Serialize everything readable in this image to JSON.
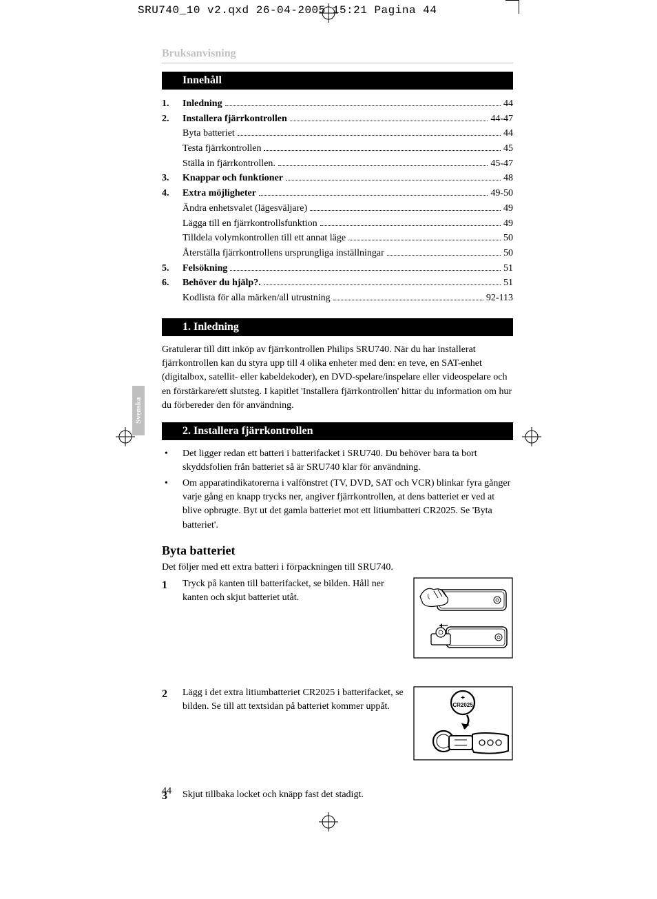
{
  "qxd_header": "SRU740_10 v2.qxd  26-04-2005  15:21  Pagina 44",
  "side_tab": "Svenska",
  "page_number": "44",
  "section_label": "Bruksanvisning",
  "sections": {
    "toc_header": "Innehåll",
    "intro_header": "1. Inledning",
    "install_header": "2. Installera fjärrkontrollen",
    "swap_heading": "Byta batteriet"
  },
  "toc": [
    {
      "num": "1.",
      "title": "Inledning",
      "page": "44",
      "bold": true
    },
    {
      "num": "2.",
      "title": "Installera fjärrkontrollen",
      "page": "44-47",
      "bold": true
    },
    {
      "num": "",
      "title": "Byta batteriet",
      "page": "44",
      "bold": false
    },
    {
      "num": "",
      "title": "Testa fjärrkontrollen",
      "page": "45",
      "bold": false
    },
    {
      "num": "",
      "title": "Ställa in fjärrkontrollen.",
      "page": "45-47",
      "bold": false
    },
    {
      "num": "3.",
      "title": "Knappar och funktioner",
      "page": "48",
      "bold": true
    },
    {
      "num": "4.",
      "title": "Extra möjligheter",
      "page": "49-50",
      "bold": true
    },
    {
      "num": "",
      "title": "Ändra enhetsvalet (lägesväljare)",
      "page": "49",
      "bold": false
    },
    {
      "num": "",
      "title": "Lägga till en fjärrkontrollsfunktion",
      "page": "49",
      "bold": false
    },
    {
      "num": "",
      "title": "Tilldela volymkontrollen till ett annat läge",
      "page": "50",
      "bold": false
    },
    {
      "num": "",
      "title": "Återställa fjärrkontrollens ursprungliga inställningar",
      "page": "50",
      "bold": false
    },
    {
      "num": "5.",
      "title": "Felsökning",
      "page": "51",
      "bold": true
    },
    {
      "num": "6.",
      "title": "Behöver du hjälp?.",
      "page": "51",
      "bold": true
    },
    {
      "num": "",
      "title": "Kodlista för alla märken/all utrustning",
      "page": "92-113",
      "bold": false
    }
  ],
  "intro_text": "Gratulerar till ditt inköp av fjärrkontrollen Philips SRU740. När du har installerat fjärrkontrollen kan du styra upp till 4 olika enheter med den: en teve, en SAT-enhet (digitalbox, satellit- eller kabeldekoder), en DVD-spelare/inspelare eller videospelare och en förstärkare/ett slutsteg. I kapitlet 'Installera fjärrkontrollen' hittar du information om hur du förbereder den för användning.",
  "bullets": [
    "Det ligger redan ett batteri i batterifacket i SRU740.\nDu behöver bara ta bort skyddsfolien från batteriet så är SRU740 klar för användning.",
    "Om apparatindikatorerna i valfönstret (TV, DVD, SAT och VCR) blinkar fyra gånger varje gång en knapp trycks ner, angiver fjärrkontrollen, at dens batteriet er ved at blive opbrugte. Byt ut det gamla batteriet mot ett litiumbatteri CR2025. Se 'Byta batteriet'."
  ],
  "swap_intro": "Det följer med ett extra batteri i förpackningen till SRU740.",
  "steps": [
    {
      "num": "1",
      "text": "Tryck på kanten till batterifacket, se bilden. Håll ner kanten och skjut batteriet utåt."
    },
    {
      "num": "2",
      "text": "Lägg i det extra litiumbatteriet CR2025 i batterifacket, se bilden.\nSe till att textsidan på batteriet kommer uppåt."
    },
    {
      "num": "3",
      "text": "Skjut tillbaka locket och knäpp fast det stadigt."
    }
  ],
  "battery_label": "CR2025",
  "colors": {
    "bar_bg": "#000000",
    "bar_text": "#ffffff",
    "grey": "#bfbfbf"
  }
}
